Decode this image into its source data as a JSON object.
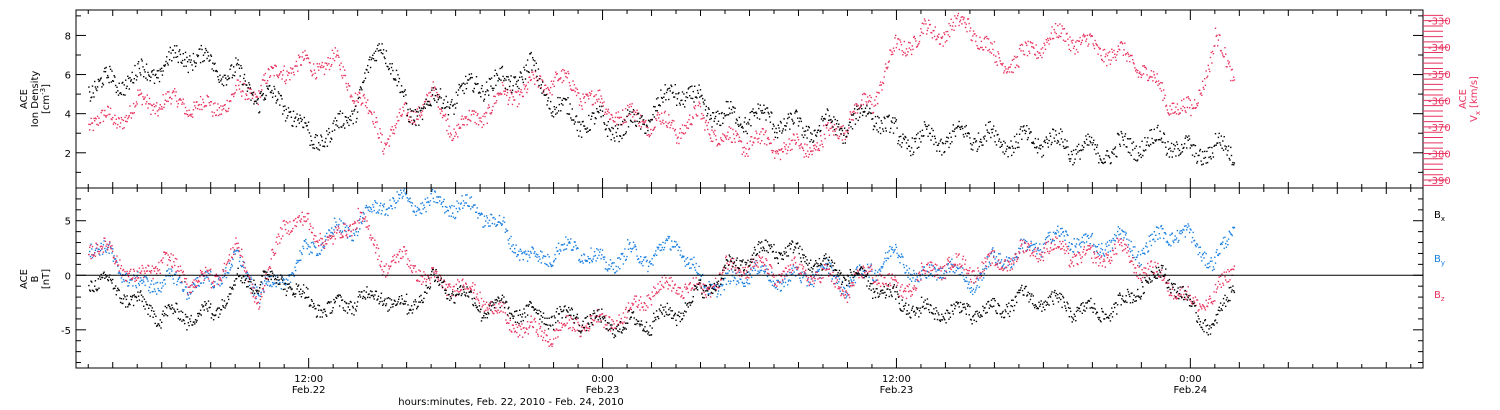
{
  "figure": {
    "xlabel": "hours:minutes, Feb. 22, 2010 - Feb. 24, 2010",
    "time_ticks": [
      {
        "hour": 12,
        "l1": "12:00",
        "l2": "Feb.22"
      },
      {
        "hour": 24,
        "l1": "0:00",
        "l2": "Feb.23"
      },
      {
        "hour": 36,
        "l1": "12:00",
        "l2": "Feb.23"
      },
      {
        "hour": 48,
        "l1": "0:00",
        "l2": "Feb.24"
      }
    ],
    "xlim_hours": [
      2.5,
      57.5
    ]
  },
  "colors": {
    "density": "#000000",
    "vx": "#e8325f",
    "bx": "#000000",
    "by": "#1a7fe0",
    "bz": "#e8325f",
    "axis": "#000000"
  },
  "chart_data": [
    {
      "type": "scatter",
      "panel": "top",
      "left_axis": {
        "label_lines": [
          "ACE",
          "Ion Density"
        ],
        "unit_base": "[cm",
        "unit_sup": "-3",
        "unit_end": "]",
        "ylim": [
          0.2,
          9.3
        ],
        "ticks": [
          2,
          4,
          6,
          8
        ]
      },
      "right_axis": {
        "label": "ACE",
        "sym": "V",
        "sub": "x",
        "unit": "[km/s]",
        "ylim": [
          -393,
          -326
        ],
        "ticks": [
          -390,
          -380,
          -370,
          -360,
          -350,
          -340,
          -330
        ]
      },
      "series": [
        {
          "axis": "left",
          "hours": [
            3,
            4,
            5,
            6,
            7,
            8,
            9,
            10,
            11,
            12,
            13,
            14,
            15,
            16,
            17,
            18,
            19,
            20,
            21,
            22,
            23,
            24,
            25,
            26,
            27,
            28,
            29,
            30,
            31,
            32,
            33,
            34,
            35,
            36,
            37,
            38,
            39,
            40,
            41,
            42,
            43,
            44,
            45,
            46,
            47,
            48,
            49,
            49.8
          ],
          "values": [
            5.4,
            5.6,
            6.0,
            6.3,
            7.0,
            6.6,
            6.0,
            4.8,
            4.5,
            2.8,
            3.0,
            4.6,
            7.8,
            4.0,
            4.6,
            4.8,
            5.5,
            5.6,
            6.4,
            4.4,
            3.6,
            3.5,
            3.3,
            3.9,
            5.2,
            4.5,
            3.8,
            3.8,
            3.6,
            3.3,
            3.4,
            3.3,
            4.1,
            2.8,
            2.7,
            2.6,
            2.9,
            2.8,
            2.6,
            2.6,
            2.3,
            2.1,
            2.2,
            2.4,
            2.6,
            2.0,
            2.3,
            1.9
          ]
        },
        {
          "axis": "right",
          "hours": [
            3,
            4,
            5,
            6,
            7,
            8,
            9,
            10,
            11,
            12,
            13,
            14,
            15,
            16,
            17,
            18,
            19,
            20,
            21,
            22,
            23,
            24,
            25,
            26,
            27,
            28,
            29,
            30,
            31,
            32,
            33,
            34,
            35,
            36,
            37,
            38,
            39,
            40,
            41,
            42,
            43,
            44,
            45,
            46,
            47,
            48,
            49,
            49.8
          ],
          "values": [
            -367,
            -368,
            -361,
            -361,
            -362,
            -363,
            -358,
            -356,
            -348,
            -347,
            -345,
            -358,
            -375,
            -366,
            -358,
            -372,
            -366,
            -358,
            -355,
            -352,
            -357,
            -362,
            -366,
            -368,
            -371,
            -366,
            -375,
            -376,
            -377,
            -378,
            -375,
            -368,
            -360,
            -340,
            -335,
            -334,
            -332,
            -344,
            -345,
            -338,
            -336,
            -340,
            -342,
            -348,
            -360,
            -365,
            -338,
            -352
          ]
        }
      ]
    },
    {
      "type": "scatter",
      "panel": "bottom",
      "left_axis": {
        "label_lines": [
          "ACE",
          "B"
        ],
        "unit": "[nT]",
        "ylim": [
          -8.5,
          8.0
        ],
        "ticks": [
          -5,
          0,
          5
        ]
      },
      "legend": [
        {
          "sym": "B",
          "sub": "x",
          "color": "#000000"
        },
        {
          "sym": "B",
          "sub": "y",
          "color": "#1a7fe0"
        },
        {
          "sym": "B",
          "sub": "z",
          "color": "#e8325f"
        }
      ],
      "series": [
        {
          "name": "Bx",
          "hours": [
            3,
            4,
            5,
            6,
            7,
            8,
            9,
            10,
            11,
            12,
            13,
            14,
            15,
            16,
            17,
            18,
            19,
            20,
            21,
            22,
            23,
            24,
            25,
            26,
            27,
            28,
            29,
            30,
            31,
            32,
            33,
            34,
            35,
            36,
            37,
            38,
            39,
            40,
            41,
            42,
            43,
            44,
            45,
            46,
            47,
            48,
            49,
            49.8
          ],
          "values": [
            -0.5,
            -1.0,
            -2.5,
            -3.7,
            -3.8,
            -3.5,
            -0.5,
            -0.5,
            -0.5,
            -2.5,
            -3.0,
            -2.2,
            -2.0,
            -3.0,
            -0.5,
            -1.5,
            -3.0,
            -3.0,
            -3.4,
            -3.8,
            -4.0,
            -4.4,
            -4.5,
            -4.2,
            -3.5,
            -1.5,
            0.4,
            1.6,
            2.4,
            2.0,
            1.0,
            0.0,
            -1.0,
            -2.3,
            -3.2,
            -3.5,
            -3.4,
            -3.2,
            -2.0,
            -2.4,
            -3.0,
            -3.3,
            -3.0,
            -1.0,
            0.2,
            -3.0,
            -4.8,
            -0.5
          ]
        },
        {
          "name": "By",
          "hours": [
            3,
            4,
            5,
            6,
            7,
            8,
            9,
            10,
            11,
            12,
            13,
            14,
            15,
            16,
            17,
            18,
            19,
            20,
            21,
            22,
            23,
            24,
            25,
            26,
            27,
            28,
            29,
            30,
            31,
            32,
            33,
            34,
            35,
            36,
            37,
            38,
            39,
            40,
            41,
            42,
            43,
            44,
            45,
            46,
            47,
            48,
            49,
            49.8
          ],
          "values": [
            3.0,
            1.5,
            -1.0,
            -0.5,
            -1.0,
            -0.5,
            1.5,
            -1.5,
            -0.5,
            2.5,
            4.0,
            4.5,
            6.5,
            6.8,
            6.6,
            6.4,
            5.8,
            4.0,
            1.5,
            2.0,
            2.5,
            1.0,
            2.0,
            1.5,
            3.0,
            -0.5,
            -1.0,
            0.5,
            -0.5,
            -0.2,
            0.5,
            -1.0,
            0.5,
            2.2,
            -0.5,
            1.0,
            -1.0,
            1.5,
            2.0,
            3.0,
            3.5,
            2.5,
            3.5,
            2.0,
            4.0,
            3.5,
            1.0,
            4.5
          ]
        },
        {
          "name": "Bz",
          "hours": [
            3,
            4,
            5,
            6,
            7,
            8,
            9,
            10,
            11,
            12,
            13,
            14,
            15,
            16,
            17,
            18,
            19,
            20,
            21,
            22,
            23,
            24,
            25,
            26,
            27,
            28,
            29,
            30,
            31,
            32,
            33,
            34,
            35,
            36,
            37,
            38,
            39,
            40,
            41,
            42,
            43,
            44,
            45,
            46,
            47,
            48,
            49,
            49.8
          ],
          "values": [
            2.8,
            2.0,
            -0.5,
            1.5,
            -0.5,
            -0.5,
            2.5,
            -2.5,
            5.0,
            4.5,
            3.0,
            5.5,
            1.0,
            1.5,
            -0.5,
            -1.0,
            -2.0,
            -4.0,
            -5.0,
            -5.5,
            -4.5,
            -4.2,
            -3.5,
            -1.5,
            -1.0,
            -1.5,
            0.5,
            1.0,
            0.0,
            0.5,
            0.0,
            -1.5,
            0.5,
            -1.5,
            0.0,
            1.0,
            0.5,
            1.0,
            2.0,
            2.5,
            2.0,
            1.5,
            2.5,
            0.5,
            -0.5,
            -2.5,
            -2.0,
            1.0
          ]
        }
      ]
    }
  ]
}
